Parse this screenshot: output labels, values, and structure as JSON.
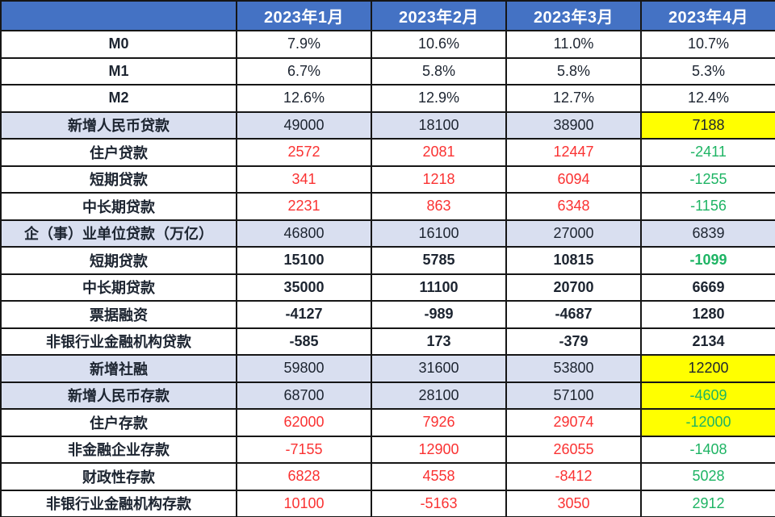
{
  "chart_data": {
    "type": "table",
    "columns": [
      "",
      "2023年1月",
      "2023年2月",
      "2023年3月",
      "2023年4月"
    ],
    "rows": [
      {
        "label": "M0",
        "values": [
          "7.9%",
          "10.6%",
          "11.0%",
          "10.7%"
        ],
        "value_color": [
          "dark",
          "dark",
          "dark",
          "dark"
        ],
        "bold_values": false,
        "row_highlight": false,
        "cell_bg": [
          "plain",
          "plain",
          "plain",
          "plain"
        ]
      },
      {
        "label": "M1",
        "values": [
          "6.7%",
          "5.8%",
          "5.8%",
          "5.3%"
        ],
        "value_color": [
          "dark",
          "dark",
          "dark",
          "dark"
        ],
        "bold_values": false,
        "row_highlight": false,
        "cell_bg": [
          "plain",
          "plain",
          "plain",
          "plain"
        ]
      },
      {
        "label": "M2",
        "values": [
          "12.6%",
          "12.9%",
          "12.7%",
          "12.4%"
        ],
        "value_color": [
          "dark",
          "dark",
          "dark",
          "dark"
        ],
        "bold_values": false,
        "row_highlight": false,
        "cell_bg": [
          "plain",
          "plain",
          "plain",
          "plain"
        ]
      },
      {
        "label": "新增人民币贷款",
        "values": [
          "49000",
          "18100",
          "38900",
          "7188"
        ],
        "value_color": [
          "dark",
          "dark",
          "dark",
          "dark"
        ],
        "bold_values": false,
        "row_highlight": true,
        "cell_bg": [
          "plain",
          "plain",
          "plain",
          "yellow"
        ]
      },
      {
        "label": "住户贷款",
        "values": [
          "2572",
          "2081",
          "12447",
          "-2411"
        ],
        "value_color": [
          "red",
          "red",
          "red",
          "green"
        ],
        "bold_values": false,
        "row_highlight": false,
        "cell_bg": [
          "plain",
          "plain",
          "plain",
          "plain"
        ]
      },
      {
        "label": "短期贷款",
        "values": [
          "341",
          "1218",
          "6094",
          "-1255"
        ],
        "value_color": [
          "red",
          "red",
          "red",
          "green"
        ],
        "bold_values": false,
        "row_highlight": false,
        "cell_bg": [
          "plain",
          "plain",
          "plain",
          "plain"
        ]
      },
      {
        "label": "中长期贷款",
        "values": [
          "2231",
          "863",
          "6348",
          "-1156"
        ],
        "value_color": [
          "red",
          "red",
          "red",
          "green"
        ],
        "bold_values": false,
        "row_highlight": false,
        "cell_bg": [
          "plain",
          "plain",
          "plain",
          "plain"
        ]
      },
      {
        "label": "企（事）业单位贷款（万亿）",
        "values": [
          "46800",
          "16100",
          "27000",
          "6839"
        ],
        "value_color": [
          "dark",
          "dark",
          "dark",
          "dark"
        ],
        "bold_values": false,
        "row_highlight": true,
        "cell_bg": [
          "plain",
          "plain",
          "plain",
          "plain"
        ]
      },
      {
        "label": "短期贷款",
        "values": [
          "15100",
          "5785",
          "10815",
          "-1099"
        ],
        "value_color": [
          "dark",
          "dark",
          "dark",
          "green"
        ],
        "bold_values": true,
        "row_highlight": false,
        "cell_bg": [
          "plain",
          "plain",
          "plain",
          "plain"
        ]
      },
      {
        "label": "中长期贷款",
        "values": [
          "35000",
          "11100",
          "20700",
          "6669"
        ],
        "value_color": [
          "dark",
          "dark",
          "dark",
          "dark"
        ],
        "bold_values": true,
        "row_highlight": false,
        "cell_bg": [
          "plain",
          "plain",
          "plain",
          "plain"
        ]
      },
      {
        "label": "票据融资",
        "values": [
          "-4127",
          "-989",
          "-4687",
          "1280"
        ],
        "value_color": [
          "dark",
          "dark",
          "dark",
          "dark"
        ],
        "bold_values": true,
        "row_highlight": false,
        "cell_bg": [
          "plain",
          "plain",
          "plain",
          "plain"
        ]
      },
      {
        "label": "非银行业金融机构贷款",
        "values": [
          "-585",
          "173",
          "-379",
          "2134"
        ],
        "value_color": [
          "dark",
          "dark",
          "dark",
          "dark"
        ],
        "bold_values": true,
        "row_highlight": false,
        "cell_bg": [
          "plain",
          "plain",
          "plain",
          "plain"
        ]
      },
      {
        "label": "新增社融",
        "values": [
          "59800",
          "31600",
          "53800",
          "12200"
        ],
        "value_color": [
          "dark",
          "dark",
          "dark",
          "dark"
        ],
        "bold_values": false,
        "row_highlight": true,
        "cell_bg": [
          "plain",
          "plain",
          "plain",
          "yellow"
        ]
      },
      {
        "label": "新增人民币存款",
        "values": [
          "68700",
          "28100",
          "57100",
          "-4609"
        ],
        "value_color": [
          "dark",
          "dark",
          "dark",
          "green"
        ],
        "bold_values": false,
        "row_highlight": true,
        "cell_bg": [
          "plain",
          "plain",
          "plain",
          "yellow"
        ]
      },
      {
        "label": "住户存款",
        "values": [
          "62000",
          "7926",
          "29074",
          "-12000"
        ],
        "value_color": [
          "red",
          "red",
          "red",
          "green"
        ],
        "bold_values": false,
        "row_highlight": false,
        "cell_bg": [
          "plain",
          "plain",
          "plain",
          "yellow"
        ]
      },
      {
        "label": "非金融企业存款",
        "values": [
          "-7155",
          "12900",
          "26055",
          "-1408"
        ],
        "value_color": [
          "red",
          "red",
          "red",
          "green"
        ],
        "bold_values": false,
        "row_highlight": false,
        "cell_bg": [
          "plain",
          "plain",
          "plain",
          "plain"
        ]
      },
      {
        "label": "财政性存款",
        "values": [
          "6828",
          "4558",
          "-8412",
          "5028"
        ],
        "value_color": [
          "red",
          "red",
          "red",
          "green"
        ],
        "bold_values": false,
        "row_highlight": false,
        "cell_bg": [
          "plain",
          "plain",
          "plain",
          "plain"
        ]
      },
      {
        "label": "非银行业金融机构存款",
        "values": [
          "10100",
          "-5163",
          "3050",
          "2912"
        ],
        "value_color": [
          "red",
          "red",
          "red",
          "green"
        ],
        "bold_values": false,
        "row_highlight": false,
        "cell_bg": [
          "plain",
          "plain",
          "plain",
          "plain"
        ]
      }
    ]
  },
  "palette": {
    "header_bg": "#4472C4",
    "header_text": "#FFFFFF",
    "row_highlight_bg": "#D9DFF0",
    "yellow_highlight": "#FFFF00",
    "red": "#FA3232",
    "green": "#1EB464",
    "dark": "#1C2430",
    "border": "#161616"
  }
}
